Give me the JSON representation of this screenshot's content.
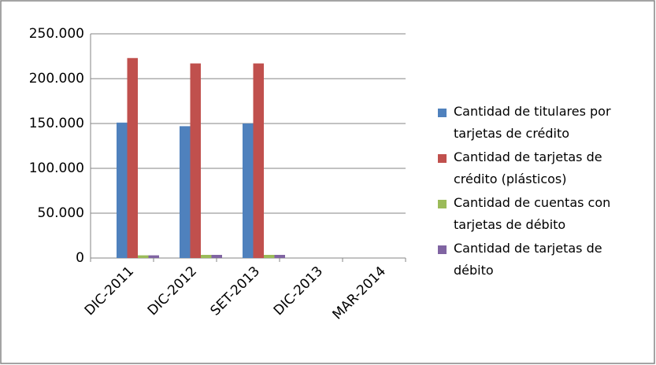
{
  "chart_data": {
    "type": "bar",
    "categories": [
      "DIC-2011",
      "DIC-2012",
      "SET-2013",
      "DIC-2013",
      "MAR-2014"
    ],
    "series": [
      {
        "name": "Cantidad de titulares por tarjetas de crédito",
        "color": "#4f81bd",
        "values": [
          151000,
          147000,
          150000,
          null,
          null
        ]
      },
      {
        "name": "Cantidad de tarjetas de crédito (plásticos)",
        "color": "#c0504d",
        "values": [
          223000,
          217000,
          217000,
          null,
          null
        ]
      },
      {
        "name": "Cantidad de cuentas con tarjetas de débito",
        "color": "#9bbb59",
        "values": [
          3000,
          3500,
          3500,
          null,
          null
        ]
      },
      {
        "name": "Cantidad de tarjetas de débito",
        "color": "#8064a2",
        "values": [
          3000,
          3500,
          3500,
          null,
          null
        ]
      }
    ],
    "ylim": [
      0,
      250000
    ],
    "yticks": [
      0,
      {
        "value": 50000,
        "label": "50.000"
      },
      {
        "value": 100000,
        "label": "100.000"
      },
      {
        "value": 150000,
        "label": "150.000"
      },
      {
        "value": 200000,
        "label": "200.000"
      },
      {
        "value": 250000,
        "label": "250.000"
      }
    ],
    "grid": true,
    "legend": "right"
  }
}
